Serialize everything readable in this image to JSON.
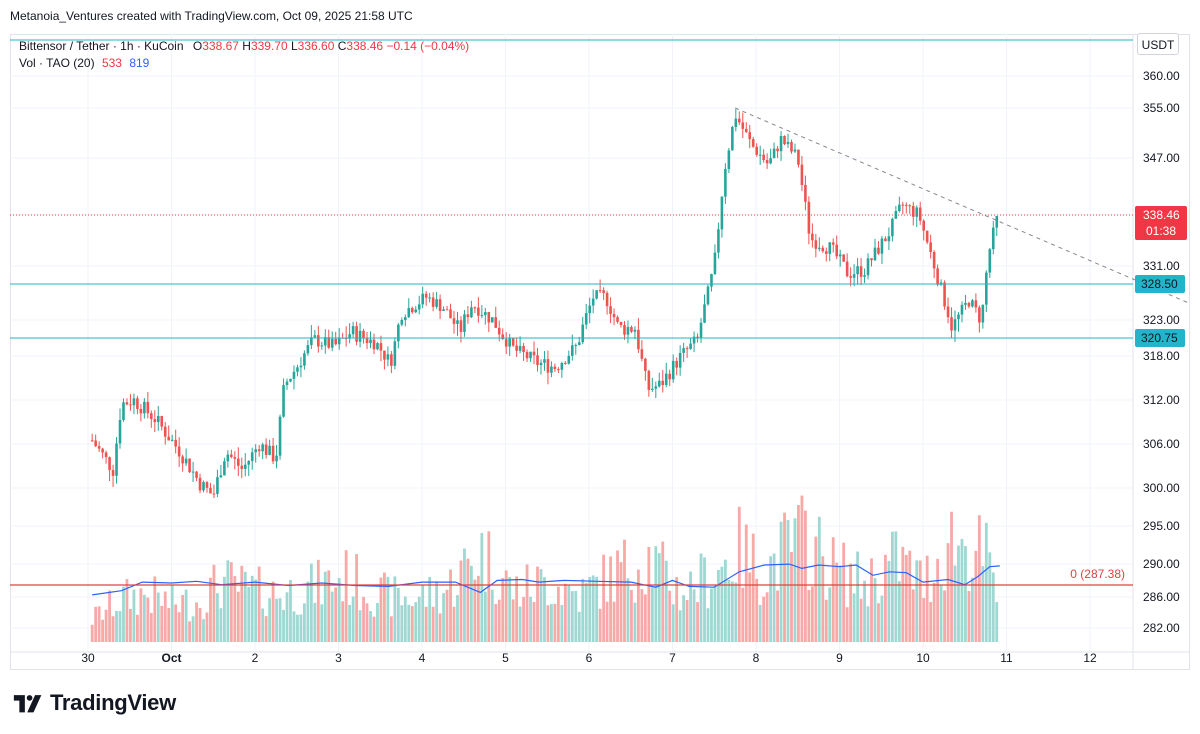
{
  "header": {
    "attribution": "Metanoia_Ventures created with TradingView.com, Oct 09, 2025 21:58 UTC"
  },
  "legend": {
    "symbol": "Bittensor / Tether · 1h · KuCoin",
    "open_label": "O",
    "open": "338.67",
    "high_label": "H",
    "high": "339.70",
    "low_label": "L",
    "low": "336.60",
    "close_label": "C",
    "close": "338.46",
    "change": "−0.14 (−0.04%)",
    "volume_label": "Vol · TAO (20)",
    "volume_value": "533",
    "volume_ma": "819"
  },
  "currency_button": "USDT",
  "branding": {
    "logo_text": "TradingView"
  },
  "colors": {
    "up": "#26a69a",
    "down": "#ef5350",
    "vol_up": "#9fd8d3",
    "vol_down": "#f7a9a7",
    "level_line": "#22b5c9",
    "volume_ma": "#2962ff",
    "price_tag": "#f23645",
    "fib_line": "#e04040",
    "trendline": "#888888"
  },
  "chart_data": {
    "type": "candlestick",
    "title": "",
    "y_axis_ticks": [
      "360.00",
      "355.00",
      "347.00",
      "338.46",
      "331.00",
      "328.50",
      "323.00",
      "320.75",
      "318.00",
      "312.00",
      "306.00",
      "300.00",
      "295.00",
      "290.00",
      "286.00",
      "282.00"
    ],
    "x_axis_ticks": [
      "30",
      "Oct",
      "2",
      "3",
      "4",
      "5",
      "6",
      "7",
      "8",
      "9",
      "10",
      "11",
      "12"
    ],
    "horizontal_levels": [
      328.5,
      320.75
    ],
    "last_price": {
      "value": "338.46",
      "countdown": "01:38"
    },
    "fib_level": {
      "label": "0 (287.38)",
      "value": 287.38
    },
    "trendline": {
      "from": {
        "x": 6.75,
        "price": 355.0
      },
      "to": {
        "x": 12.2,
        "price": 325.5
      }
    },
    "price_path": [
      [
        -0.95,
        306.5
      ],
      [
        -0.7,
        302.5
      ],
      [
        -0.6,
        311.5
      ],
      [
        -0.45,
        312.0
      ],
      [
        -0.2,
        309.5
      ],
      [
        0.1,
        305.0
      ],
      [
        0.35,
        300.5
      ],
      [
        0.5,
        299.0
      ],
      [
        0.65,
        305.0
      ],
      [
        0.85,
        302.5
      ],
      [
        1.05,
        306.0
      ],
      [
        1.25,
        304.0
      ],
      [
        1.35,
        314.0
      ],
      [
        1.5,
        316.5
      ],
      [
        1.7,
        320.5
      ],
      [
        1.95,
        319.5
      ],
      [
        2.15,
        321.5
      ],
      [
        2.45,
        320.0
      ],
      [
        2.62,
        317.0
      ],
      [
        2.75,
        324.0
      ],
      [
        3.05,
        326.5
      ],
      [
        3.25,
        325.0
      ],
      [
        3.45,
        321.5
      ],
      [
        3.6,
        325.5
      ],
      [
        3.85,
        323.0
      ],
      [
        4.1,
        319.0
      ],
      [
        4.4,
        317.0
      ],
      [
        4.6,
        316.5
      ],
      [
        4.85,
        319.5
      ],
      [
        5.05,
        326.5
      ],
      [
        5.2,
        326.5
      ],
      [
        5.35,
        322.0
      ],
      [
        5.55,
        322.0
      ],
      [
        5.7,
        313.5
      ],
      [
        5.85,
        314.0
      ],
      [
        6.1,
        318.0
      ],
      [
        6.3,
        320.5
      ],
      [
        6.5,
        331.0
      ],
      [
        6.62,
        345.0
      ],
      [
        6.75,
        354.0
      ],
      [
        6.95,
        349.0
      ],
      [
        7.15,
        346.0
      ],
      [
        7.3,
        350.0
      ],
      [
        7.5,
        347.0
      ],
      [
        7.65,
        335.0
      ],
      [
        7.9,
        333.5
      ],
      [
        8.1,
        330.0
      ],
      [
        8.3,
        330.5
      ],
      [
        8.6,
        336.0
      ],
      [
        8.75,
        340.0
      ],
      [
        8.95,
        338.5
      ],
      [
        9.15,
        330.5
      ],
      [
        9.35,
        322.0
      ],
      [
        9.55,
        326.0
      ],
      [
        9.7,
        323.0
      ],
      [
        9.78,
        332.5
      ],
      [
        9.9,
        338.5
      ]
    ],
    "volume_range": [
      0,
      1800
    ],
    "volume_path": [
      [
        -0.95,
        300
      ],
      [
        -0.6,
        560
      ],
      [
        -0.3,
        620
      ],
      [
        0.0,
        500
      ],
      [
        0.3,
        520
      ],
      [
        0.6,
        780
      ],
      [
        0.9,
        680
      ],
      [
        1.3,
        620
      ],
      [
        1.7,
        710
      ],
      [
        2.1,
        840
      ],
      [
        2.5,
        610
      ],
      [
        2.9,
        560
      ],
      [
        3.3,
        680
      ],
      [
        3.7,
        1180
      ],
      [
        4.1,
        660
      ],
      [
        4.5,
        780
      ],
      [
        4.9,
        620
      ],
      [
        5.3,
        880
      ],
      [
        5.7,
        1100
      ],
      [
        6.1,
        640
      ],
      [
        6.5,
        900
      ],
      [
        6.8,
        1180
      ],
      [
        7.1,
        900
      ],
      [
        7.4,
        1250
      ],
      [
        7.6,
        1350
      ],
      [
        7.9,
        980
      ],
      [
        8.3,
        760
      ],
      [
        8.7,
        1080
      ],
      [
        9.0,
        760
      ],
      [
        9.35,
        1350
      ],
      [
        9.55,
        1200
      ],
      [
        9.75,
        1120
      ],
      [
        9.9,
        500
      ]
    ],
    "volume_ma_path": [
      [
        -0.95,
        550
      ],
      [
        -0.6,
        600
      ],
      [
        -0.35,
        700
      ],
      [
        0.0,
        690
      ],
      [
        0.3,
        710
      ],
      [
        0.6,
        670
      ],
      [
        1.0,
        700
      ],
      [
        1.4,
        660
      ],
      [
        1.8,
        690
      ],
      [
        2.2,
        660
      ],
      [
        2.6,
        650
      ],
      [
        3.0,
        700
      ],
      [
        3.4,
        700
      ],
      [
        3.7,
        580
      ],
      [
        3.9,
        720
      ],
      [
        4.2,
        730
      ],
      [
        4.4,
        700
      ],
      [
        4.7,
        720
      ],
      [
        5.1,
        710
      ],
      [
        5.5,
        700
      ],
      [
        5.8,
        640
      ],
      [
        6.0,
        720
      ],
      [
        6.2,
        650
      ],
      [
        6.5,
        640
      ],
      [
        6.8,
        820
      ],
      [
        7.1,
        900
      ],
      [
        7.4,
        910
      ],
      [
        7.55,
        860
      ],
      [
        7.75,
        900
      ],
      [
        8.0,
        880
      ],
      [
        8.2,
        900
      ],
      [
        8.4,
        780
      ],
      [
        8.6,
        820
      ],
      [
        8.8,
        810
      ],
      [
        9.0,
        700
      ],
      [
        9.3,
        730
      ],
      [
        9.5,
        670
      ],
      [
        9.65,
        760
      ],
      [
        9.8,
        880
      ],
      [
        9.92,
        890
      ]
    ]
  }
}
